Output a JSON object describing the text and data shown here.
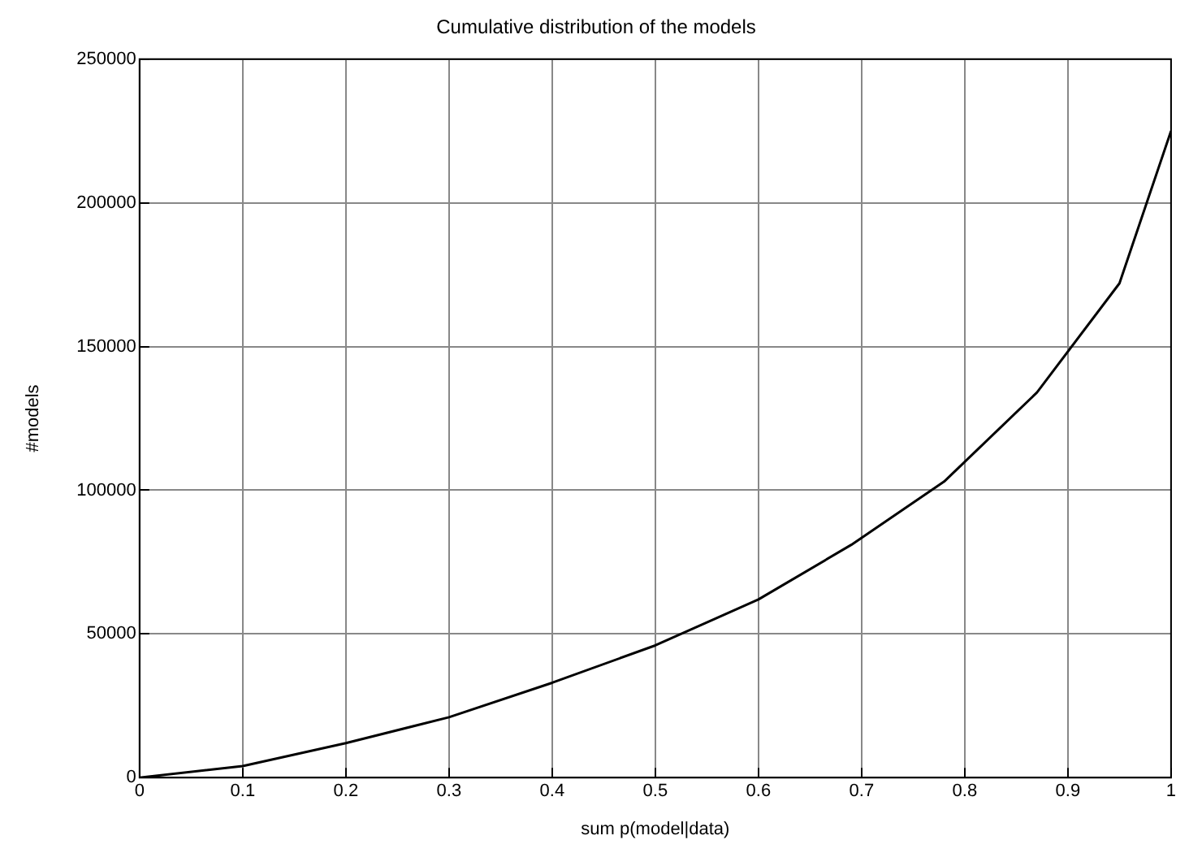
{
  "chart_data": {
    "type": "line",
    "title": "Cumulative distribution of the models",
    "xlabel": "sum p(model|data)",
    "ylabel": "#models",
    "x": [
      0,
      0.1,
      0.2,
      0.3,
      0.4,
      0.5,
      0.6,
      0.69,
      0.78,
      0.87,
      0.95,
      1.0
    ],
    "series": [
      {
        "color": "#000000",
        "values": [
          0,
          4000,
          12000,
          21000,
          33000,
          46000,
          62000,
          81000,
          103000,
          134000,
          172000,
          225000
        ]
      }
    ],
    "xlim": [
      0,
      1
    ],
    "xticks": [
      0,
      0.1,
      0.2,
      0.3,
      0.4,
      0.5,
      0.6,
      0.7,
      0.8,
      0.9,
      1
    ],
    "ylim": [
      0,
      250000
    ],
    "yticks": [
      0,
      50000,
      100000,
      150000,
      200000,
      250000
    ],
    "grid": true,
    "legend": false,
    "marker": "none",
    "line_style": "solid"
  }
}
